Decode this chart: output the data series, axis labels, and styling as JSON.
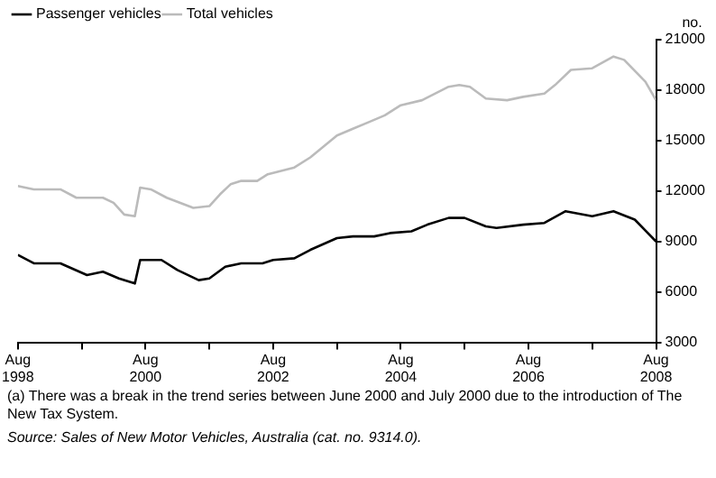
{
  "chart_data": {
    "type": "line",
    "ylabel": "no.",
    "series": [
      {
        "name": "Passenger vehicles",
        "color": "#000000",
        "x": [
          "1998-08",
          "1998-11",
          "1999-04",
          "1999-09",
          "1999-12",
          "2000-03",
          "2000-06",
          "2000-07",
          "2000-11",
          "2001-02",
          "2001-06",
          "2001-08",
          "2001-11",
          "2002-02",
          "2002-06",
          "2002-08",
          "2002-12",
          "2003-03",
          "2003-08",
          "2003-11",
          "2004-03",
          "2004-06",
          "2004-10",
          "2005-01",
          "2005-05",
          "2005-08",
          "2005-12",
          "2006-02",
          "2006-07",
          "2006-11",
          "2007-03",
          "2007-08",
          "2007-12",
          "2008-04",
          "2008-08"
        ],
        "values": [
          8200,
          7700,
          7700,
          7000,
          7200,
          6800,
          6500,
          7900,
          7900,
          7300,
          6700,
          6800,
          7500,
          7700,
          7700,
          7900,
          8000,
          8500,
          9200,
          9300,
          9300,
          9500,
          9600,
          10000,
          10400,
          10400,
          9900,
          9800,
          10000,
          10100,
          10800,
          10500,
          10800,
          10300,
          9000
        ]
      },
      {
        "name": "Total vehicles",
        "color": "#bbbbbb",
        "x": [
          "1998-08",
          "1998-11",
          "1999-04",
          "1999-07",
          "1999-12",
          "2000-02",
          "2000-04",
          "2000-06",
          "2000-07",
          "2000-09",
          "2000-12",
          "2001-05",
          "2001-08",
          "2001-10",
          "2001-12",
          "2002-02",
          "2002-05",
          "2002-07",
          "2002-12",
          "2003-03",
          "2003-08",
          "2003-11",
          "2004-02",
          "2004-05",
          "2004-08",
          "2004-12",
          "2005-05",
          "2005-07",
          "2005-09",
          "2005-12",
          "2006-04",
          "2006-07",
          "2006-11",
          "2007-01",
          "2007-04",
          "2007-08",
          "2007-12",
          "2008-02",
          "2008-06",
          "2008-08"
        ],
        "values": [
          12300,
          12100,
          12100,
          11600,
          11600,
          11300,
          10600,
          10500,
          12200,
          12100,
          11600,
          11000,
          11100,
          11800,
          12400,
          12600,
          12600,
          13000,
          13400,
          14000,
          15300,
          15700,
          16100,
          16500,
          17100,
          17400,
          18200,
          18300,
          18200,
          17500,
          17400,
          17600,
          17800,
          18300,
          19200,
          19300,
          20000,
          19800,
          18500,
          17400
        ]
      }
    ],
    "xlim": [
      "1998-08",
      "2008-08"
    ],
    "xticks": [
      {
        "value": "1998-08",
        "label": "Aug 1998"
      },
      {
        "value": "1999-08",
        "label": null
      },
      {
        "value": "2000-08",
        "label": "Aug 2000"
      },
      {
        "value": "2001-08",
        "label": null
      },
      {
        "value": "2002-08",
        "label": "Aug 2002"
      },
      {
        "value": "2003-08",
        "label": null
      },
      {
        "value": "2004-08",
        "label": "Aug 2004"
      },
      {
        "value": "2005-08",
        "label": null
      },
      {
        "value": "2006-08",
        "label": "Aug 2006"
      },
      {
        "value": "2007-08",
        "label": null
      },
      {
        "value": "2008-08",
        "label": "Aug 2008"
      }
    ],
    "ylim": [
      3000,
      21000
    ],
    "yticks": [
      3000,
      6000,
      9000,
      12000,
      15000,
      18000,
      21000
    ],
    "grid": false,
    "legend": "top left",
    "marker": "none",
    "line_style": "solid",
    "annotations": [
      "(a) There was a break in the trend series between June 2000 and July 2000 due to the introduction of The New Tax System.",
      "Source: Sales of New Motor Vehicles, Australia (cat. no. 9314.0)."
    ]
  }
}
